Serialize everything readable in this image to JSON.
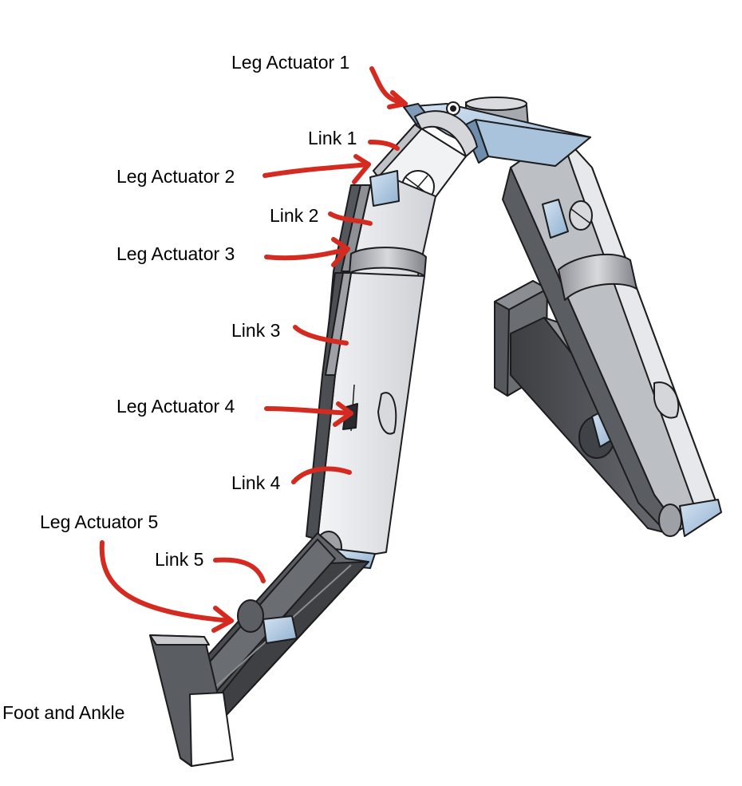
{
  "labels": {
    "leg_actuator_1": "Leg Actuator 1",
    "link_1": "Link 1",
    "leg_actuator_2": "Leg Actuator 2",
    "link_2": "Link 2",
    "leg_actuator_3": "Leg Actuator 3",
    "link_3": "Link 3",
    "leg_actuator_4": "Leg Actuator 4",
    "link_4": "Link 4",
    "leg_actuator_5": "Leg Actuator 5",
    "link_5": "Link 5",
    "foot_and_ankle": "Foot and Ankle"
  },
  "colors": {
    "annotation_arrow": "#d42a20",
    "link_light": "#e4e6ea",
    "link_mid": "#b9bcc1",
    "link_dark": "#4b4d52",
    "actuator_blue": "#a9c3dd",
    "outline": "#1c1c1e"
  }
}
